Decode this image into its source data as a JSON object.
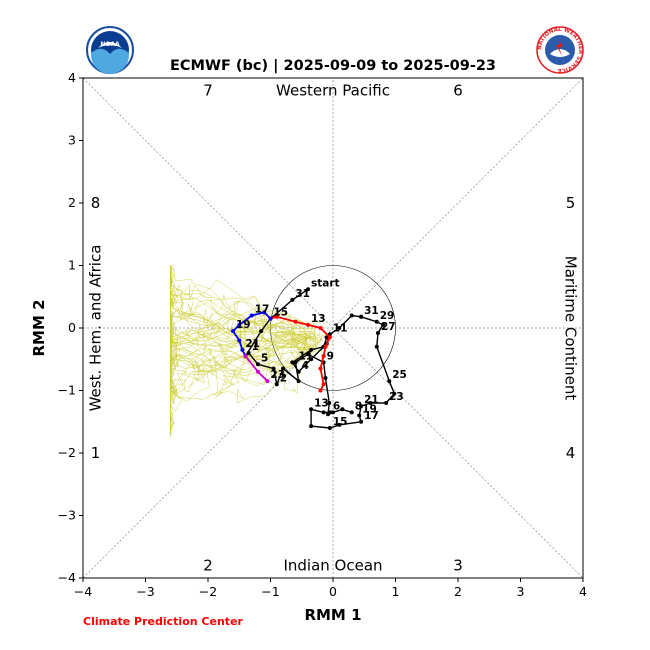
{
  "header": {
    "title": "ECMWF (bc) | 2025-09-09 to 2025-09-23",
    "credit": "Climate Prediction Center"
  },
  "logos": {
    "left": {
      "icon": "noaa-logo",
      "text": "NOAA",
      "colors": {
        "ring": "#1b4f9c",
        "sky": "#0a3d91",
        "sea": "#4fa8e0"
      }
    },
    "right": {
      "icon": "nws-logo",
      "ring_text": "NATIONAL WEATHER SERVICE",
      "colors": {
        "ring": "#e02020",
        "center": "#2b5cab"
      }
    }
  },
  "chart_data": {
    "type": "line",
    "title": "ECMWF (bc) | 2025-09-09 to 2025-09-23",
    "xlabel": "RMM 1",
    "ylabel": "RMM 2",
    "xlim": [
      -4,
      4
    ],
    "ylim": [
      -4,
      4
    ],
    "xticks": [
      -4,
      -3,
      -2,
      -1,
      0,
      1,
      2,
      3,
      4
    ],
    "yticks": [
      -4,
      -3,
      -2,
      -1,
      0,
      1,
      2,
      3,
      4
    ],
    "phase_labels": [
      {
        "label": "1",
        "x": -3.8,
        "y": -2.0
      },
      {
        "label": "2",
        "x": -2.0,
        "y": -3.8
      },
      {
        "label": "3",
        "x": 2.0,
        "y": -3.8
      },
      {
        "label": "4",
        "x": 3.8,
        "y": -2.0
      },
      {
        "label": "5",
        "x": 3.8,
        "y": 2.0
      },
      {
        "label": "6",
        "x": 2.0,
        "y": 3.8
      },
      {
        "label": "7",
        "x": -2.0,
        "y": 3.8
      },
      {
        "label": "8",
        "x": -3.8,
        "y": 2.0
      }
    ],
    "regions": {
      "top": "Western Pacific",
      "bottom": "Indian Ocean",
      "left": "West. Hem. and Africa",
      "right": "Maritime Continent"
    },
    "colors": {
      "observed": "#000000",
      "forecast_wk1": "#ff0000",
      "forecast_wk2": "#0000ff",
      "forecast_end": "#cc00cc",
      "ensemble": "#cccc33",
      "guides": "#888888"
    },
    "observed": [
      {
        "x": 0.3,
        "y": -1.35,
        "label": "8"
      },
      {
        "x": 0.15,
        "y": -1.3
      },
      {
        "x": 0.0,
        "y": -1.35
      },
      {
        "x": -0.08,
        "y": -1.38
      },
      {
        "x": -0.06,
        "y": -1.2
      },
      {
        "x": -0.12,
        "y": -0.8
      },
      {
        "x": -0.15,
        "y": -0.55,
        "label": "9"
      },
      {
        "x": -0.4,
        "y": -0.42
      },
      {
        "x": -0.6,
        "y": -0.55,
        "label": "11"
      },
      {
        "x": -0.55,
        "y": -0.85
      },
      {
        "x": -0.8,
        "y": -0.65
      },
      {
        "x": -0.9,
        "y": -0.9,
        "label": "2"
      },
      {
        "x": -0.95,
        "y": -0.65
      },
      {
        "x": -1.2,
        "y": -0.58,
        "label": "5"
      },
      {
        "x": -1.35,
        "y": -0.4,
        "label": "1"
      },
      {
        "x": -1.4,
        "y": -0.45
      },
      {
        "x": -1.15,
        "y": -0.05
      },
      {
        "x": -1.0,
        "y": 0.15
      },
      {
        "x": -0.65,
        "y": 0.45,
        "label": "31"
      },
      {
        "x": -0.4,
        "y": 0.62,
        "label": "start"
      }
    ],
    "observed_b": [
      {
        "x": 0.45,
        "y": 0.18,
        "label": "31"
      },
      {
        "x": 0.3,
        "y": 0.2
      },
      {
        "x": 0.1,
        "y": 0.0
      },
      {
        "x": -0.05,
        "y": -0.1,
        "label": "11"
      },
      {
        "x": -0.1,
        "y": -0.25
      },
      {
        "x": -0.35,
        "y": -0.5
      },
      {
        "x": -0.55,
        "y": -0.7,
        "label": "4"
      },
      {
        "x": -0.65,
        "y": -0.55
      },
      {
        "x": -0.35,
        "y": -0.35
      },
      {
        "x": -0.15,
        "y": -0.3
      },
      {
        "x": -0.1,
        "y": -0.15
      }
    ],
    "observed_c": [
      {
        "x": 0.45,
        "y": 0.18
      },
      {
        "x": 0.7,
        "y": 0.1,
        "label": "29"
      },
      {
        "x": 0.8,
        "y": 0.05
      },
      {
        "x": 0.72,
        "y": -0.08,
        "label": "27"
      },
      {
        "x": 0.7,
        "y": -0.3
      },
      {
        "x": 0.9,
        "y": -0.85,
        "label": "25"
      },
      {
        "x": 0.98,
        "y": -1.05
      },
      {
        "x": 0.85,
        "y": -1.2,
        "label": "23"
      },
      {
        "x": 0.6,
        "y": -1.2
      },
      {
        "x": 0.45,
        "y": -1.25,
        "label": "21"
      },
      {
        "x": 0.42,
        "y": -1.4,
        "label": "19"
      },
      {
        "x": 0.45,
        "y": -1.5,
        "label": "17"
      },
      {
        "x": 0.1,
        "y": -1.55
      },
      {
        "x": -0.05,
        "y": -1.6,
        "label": "15"
      },
      {
        "x": -0.35,
        "y": -1.57
      },
      {
        "x": -0.35,
        "y": -1.3,
        "label": "13"
      },
      {
        "x": -0.15,
        "y": -1.35
      },
      {
        "x": -0.05,
        "y": -1.35,
        "label": "6"
      }
    ],
    "forecast_wk1": [
      {
        "x": -0.2,
        "y": -1.0
      },
      {
        "x": -0.15,
        "y": -0.9
      },
      {
        "x": -0.2,
        "y": -0.65
      },
      {
        "x": -0.15,
        "y": -0.45
      },
      {
        "x": -0.12,
        "y": -0.3
      },
      {
        "x": -0.05,
        "y": -0.15
      },
      {
        "x": -0.2,
        "y": 0.0
      },
      {
        "x": -0.4,
        "y": 0.05,
        "label": "13"
      },
      {
        "x": -0.6,
        "y": 0.1
      },
      {
        "x": -0.9,
        "y": 0.18
      },
      {
        "x": -1.0,
        "y": 0.15,
        "label": "15"
      }
    ],
    "forecast_wk2": [
      {
        "x": -1.0,
        "y": 0.15
      },
      {
        "x": -1.1,
        "y": 0.25
      },
      {
        "x": -1.3,
        "y": 0.2,
        "label": "17"
      },
      {
        "x": -1.5,
        "y": 0.05
      },
      {
        "x": -1.6,
        "y": -0.05,
        "label": "19"
      },
      {
        "x": -1.5,
        "y": -0.2
      },
      {
        "x": -1.45,
        "y": -0.35,
        "label": "21"
      },
      {
        "x": -1.4,
        "y": -0.45
      }
    ],
    "forecast_end": [
      {
        "x": -1.4,
        "y": -0.45
      },
      {
        "x": -1.2,
        "y": -0.7
      },
      {
        "x": -1.05,
        "y": -0.85,
        "label": "23"
      }
    ]
  }
}
